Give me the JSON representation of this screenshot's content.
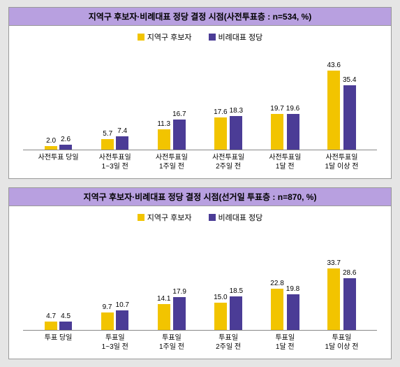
{
  "colors": {
    "series_a": "#f2c400",
    "series_b": "#4b3c96",
    "title_bg": "#b8a0e0",
    "border": "#999999",
    "background": "#ffffff"
  },
  "legend": {
    "series_a": "지역구 후보자",
    "series_b": "비례대표 정당"
  },
  "chart_max": 50,
  "charts": [
    {
      "title": "지역구 후보자·비례대표 정당 결정 시점(사전투표층 : n=534, %)",
      "categories": [
        "사전투표 당일",
        "사전투표일\n1~3일 전",
        "사전투표일\n1주일 전",
        "사전투표일\n2주일 전",
        "사전투표일\n1달 전",
        "사전투표일\n1달 이상 전"
      ],
      "series_a": [
        2.0,
        5.7,
        11.3,
        17.6,
        19.7,
        43.6
      ],
      "series_b": [
        2.6,
        7.4,
        16.7,
        18.3,
        19.6,
        35.4
      ]
    },
    {
      "title": "지역구 후보자·비례대표 정당 결정 시점(선거일 투표층 : n=870, %)",
      "categories": [
        "투표 당일",
        "투표일\n1~3일 전",
        "투표일\n1주일 전",
        "투표일\n2주일 전",
        "투표일\n1달 전",
        "투표일\n1달 이상 전"
      ],
      "series_a": [
        4.7,
        9.7,
        14.1,
        15.0,
        22.8,
        33.7
      ],
      "series_b": [
        4.5,
        10.7,
        17.9,
        18.5,
        19.8,
        28.6
      ]
    }
  ]
}
